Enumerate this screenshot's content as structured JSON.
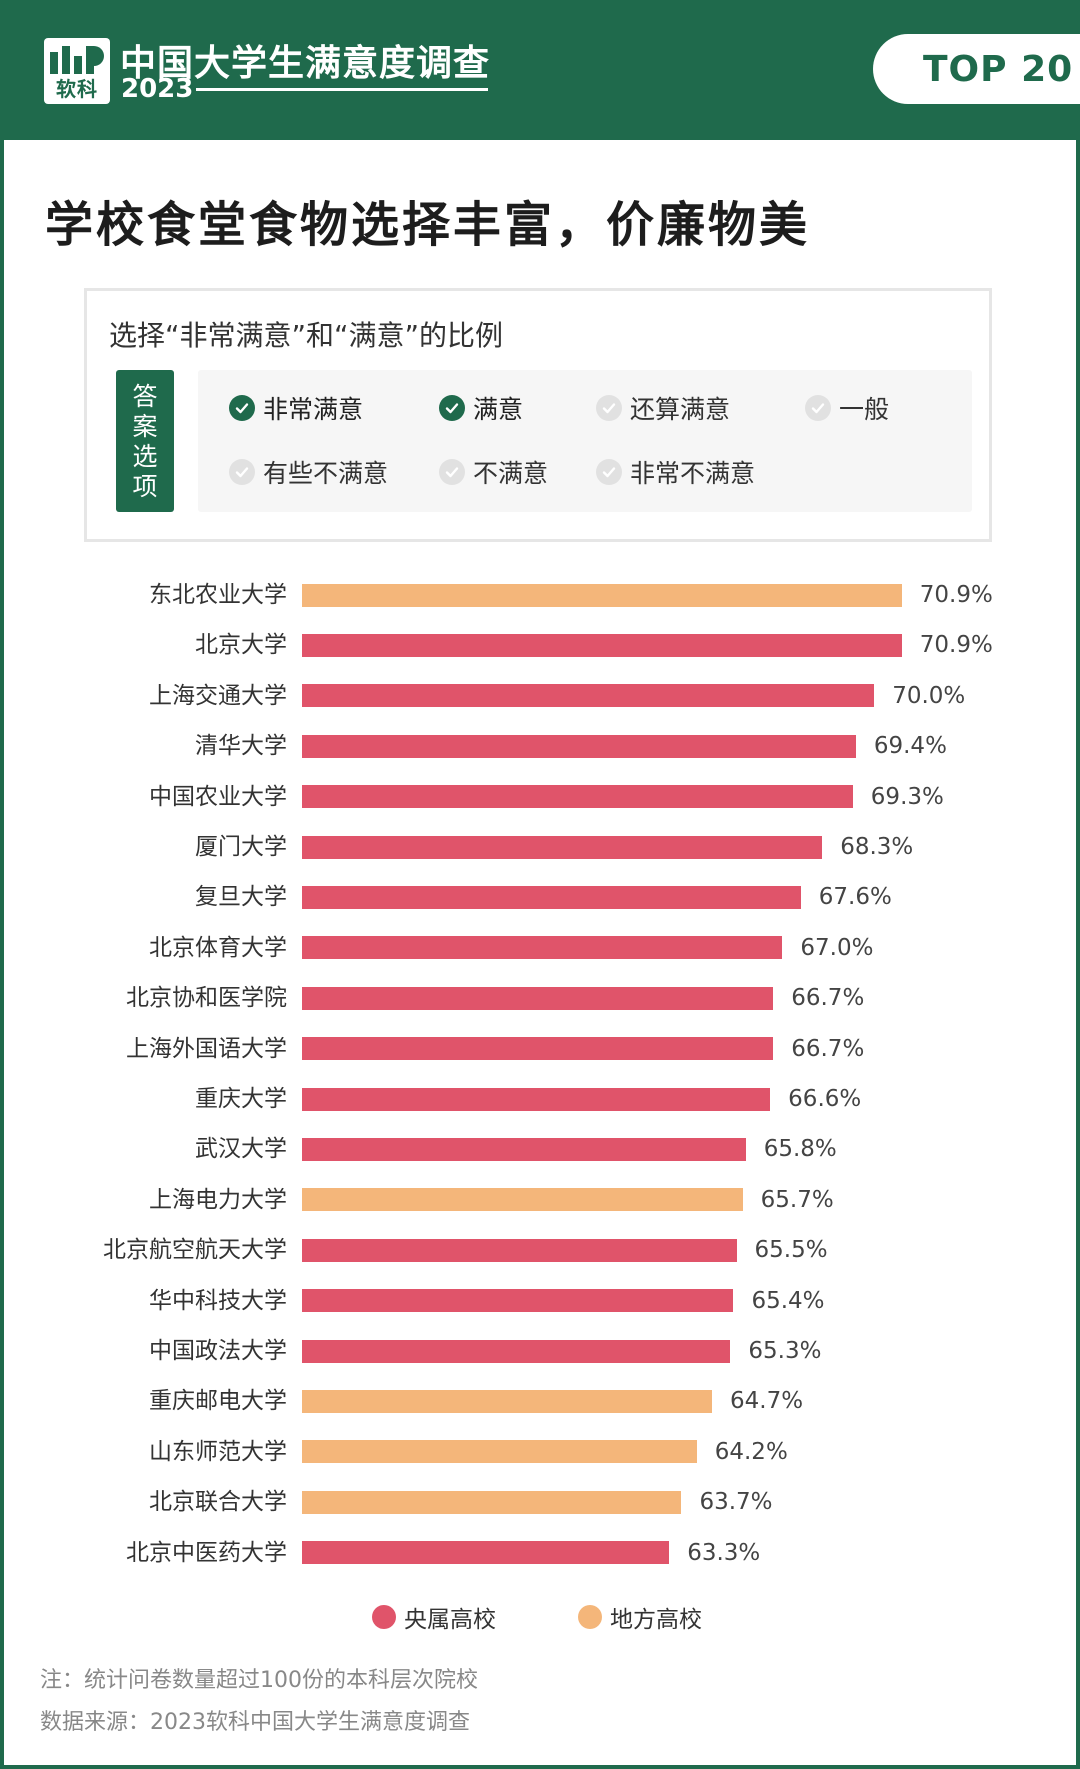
{
  "header": {
    "logo_text": "软科",
    "survey_title": "中国大学生满意度调查",
    "survey_year": "2023",
    "badge": "TOP 20"
  },
  "title": "学校食堂食物选择丰富，价廉物美",
  "options": {
    "title": "选择“非常满意”和“满意”的比例",
    "tag": [
      "答",
      "案",
      "选",
      "项"
    ],
    "items": [
      {
        "label": "非常满意",
        "selected": true,
        "icon": "check-circle-icon"
      },
      {
        "label": "满意",
        "selected": true,
        "icon": "check-circle-icon"
      },
      {
        "label": "还算满意",
        "selected": false,
        "icon": "check-circle-icon"
      },
      {
        "label": "一般",
        "selected": false,
        "icon": "check-circle-icon"
      },
      {
        "label": "有些不满意",
        "selected": false,
        "icon": "check-circle-icon"
      },
      {
        "label": "不满意",
        "selected": false,
        "icon": "check-circle-icon"
      },
      {
        "label": "非常不满意",
        "selected": false,
        "icon": "check-circle-icon"
      }
    ]
  },
  "chart_data": {
    "type": "bar",
    "orientation": "horizontal",
    "categories": [
      "东北农业大学",
      "北京大学",
      "上海交通大学",
      "清华大学",
      "中国农业大学",
      "厦门大学",
      "复旦大学",
      "北京体育大学",
      "北京协和医学院",
      "上海外国语大学",
      "重庆大学",
      "武汉大学",
      "上海电力大学",
      "北京航空航天大学",
      "华中科技大学",
      "中国政法大学",
      "重庆邮电大学",
      "山东师范大学",
      "北京联合大学",
      "北京中医药大学"
    ],
    "values": [
      70.9,
      70.9,
      70.0,
      69.4,
      69.3,
      68.3,
      67.6,
      67.0,
      66.7,
      66.7,
      66.6,
      65.8,
      65.7,
      65.5,
      65.4,
      65.3,
      64.7,
      64.2,
      63.7,
      63.3
    ],
    "value_labels": [
      "70.9%",
      "70.9%",
      "70.0%",
      "69.4%",
      "69.3%",
      "68.3%",
      "67.6%",
      "67.0%",
      "66.7%",
      "66.7%",
      "66.6%",
      "65.8%",
      "65.7%",
      "65.5%",
      "65.4%",
      "65.3%",
      "64.7%",
      "64.2%",
      "63.7%",
      "63.3%"
    ],
    "groups": [
      "local",
      "central",
      "central",
      "central",
      "central",
      "central",
      "central",
      "central",
      "central",
      "central",
      "central",
      "central",
      "local",
      "central",
      "central",
      "central",
      "local",
      "local",
      "local",
      "central"
    ],
    "unit": "%",
    "legend": [
      {
        "key": "central",
        "label": "央属高校",
        "color": "#e0546a"
      },
      {
        "key": "local",
        "label": "地方高校",
        "color": "#f4b67a"
      }
    ],
    "legend_position": "bottom",
    "grid": false
  },
  "notes": {
    "note": "注：统计问卷数量超过100份的本科层次院校",
    "source": "数据来源：2023软科中国大学生满意度调查"
  },
  "colors": {
    "brand_green": "#1f6a4c",
    "central": "#e0546a",
    "local": "#f4b67a"
  }
}
